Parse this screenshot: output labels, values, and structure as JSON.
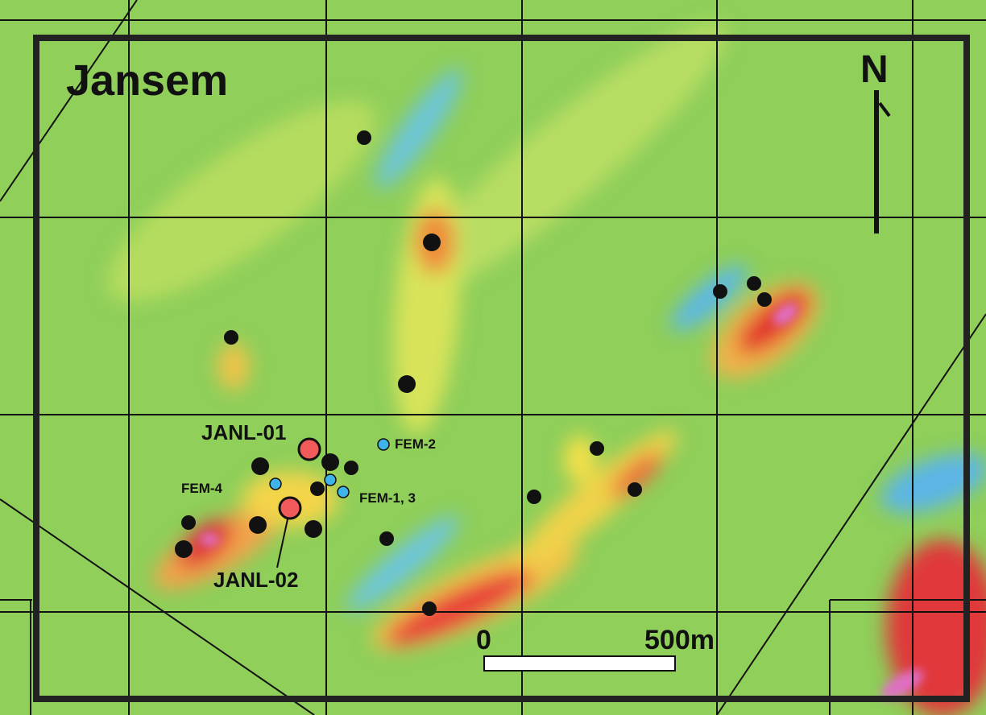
{
  "title": "Jansem",
  "north": "N",
  "drillholes": [
    {
      "label": "JANL-01"
    },
    {
      "label": "JANL-02"
    }
  ],
  "fem_targets": [
    {
      "label": "FEM-2"
    },
    {
      "label": "FEM-4"
    },
    {
      "label": "FEM-1, 3"
    }
  ],
  "scale_bar": {
    "start_label": "0",
    "end_label": "500m"
  }
}
